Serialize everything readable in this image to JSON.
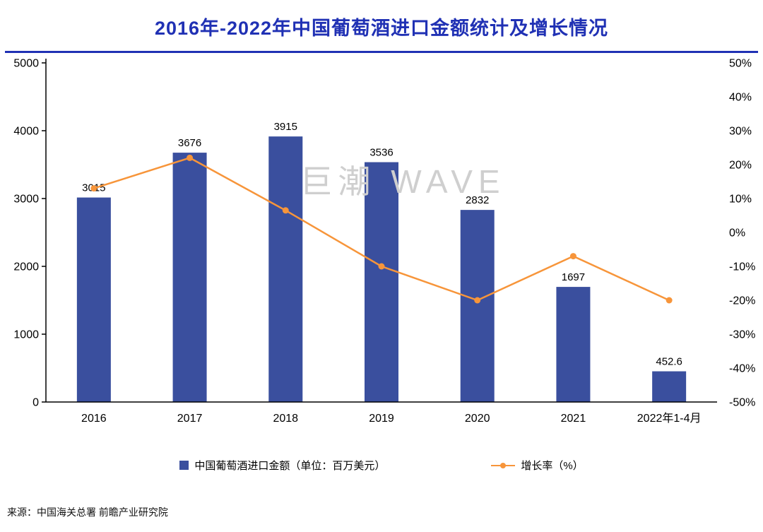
{
  "page": {
    "title": "2016年-2022年中国葡萄酒进口金额统计及增长情况",
    "watermark": "巨潮 WAVE",
    "source": "来源：中国海关总署  前瞻产业研究院"
  },
  "colors": {
    "accent-blue": "#2031B4",
    "bar-blue": "#3A4F9E",
    "line-orange": "#F7953A",
    "watermark-gray": "#CFCFCF",
    "axis-black": "#000000"
  },
  "chart_data": {
    "type": "bar",
    "title": "2016年-2022年中国葡萄酒进口金额统计及增长情况",
    "categories": [
      "2016",
      "2017",
      "2018",
      "2019",
      "2020",
      "2021",
      "2022年1-4月"
    ],
    "series": [
      {
        "name": "中国葡萄酒进口金额（单位：百万美元）",
        "type": "bar",
        "axis": "left",
        "values": [
          3015,
          3676,
          3915,
          3536,
          2832,
          1697,
          452.6
        ],
        "labels": [
          "3015",
          "3676",
          "3915",
          "3536",
          "2832",
          "1697",
          "452.6"
        ]
      },
      {
        "name": "增长率（%）",
        "type": "line",
        "axis": "right",
        "values": [
          13,
          22,
          6.5,
          -10,
          -20,
          -7,
          -20
        ]
      }
    ],
    "left_axis": {
      "min": 0,
      "max": 5000,
      "step": 1000,
      "ticks": [
        "0",
        "1000",
        "2000",
        "3000",
        "4000",
        "5000"
      ]
    },
    "right_axis": {
      "min": -50,
      "max": 50,
      "step": 10,
      "ticks": [
        "-50%",
        "-40%",
        "-30%",
        "-20%",
        "-10%",
        "0%",
        "10%",
        "20%",
        "30%",
        "40%",
        "50%"
      ]
    },
    "grid": false,
    "legend_position": "bottom"
  }
}
